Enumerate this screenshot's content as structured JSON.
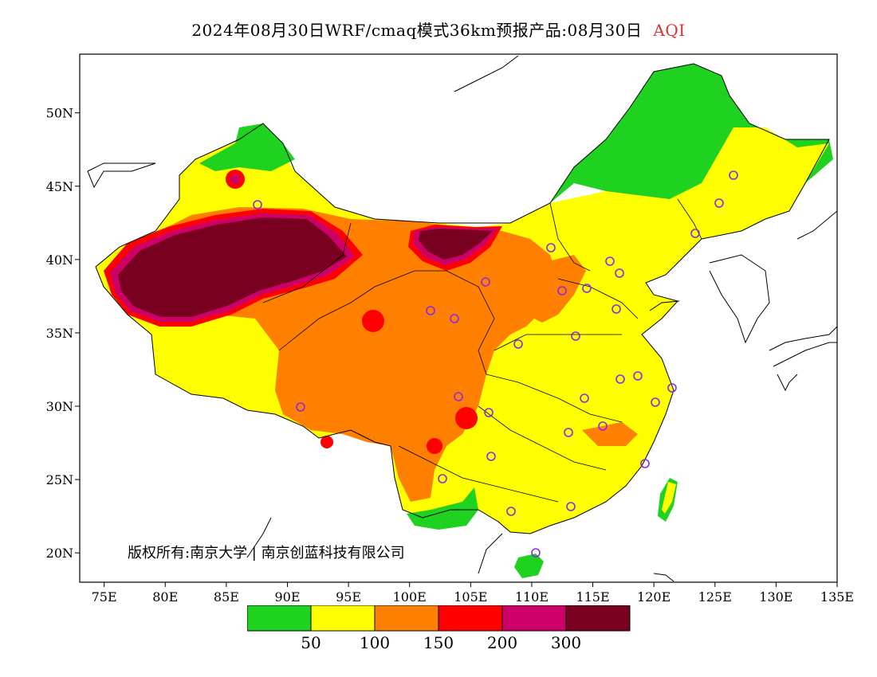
{
  "title": {
    "main": "2024年08月30日WRF/cmaq模式36km预报产品:08月30日",
    "variable": "AQI"
  },
  "copyright": "版权所有:南京大学 | 南京创蓝科技有限公司",
  "axes": {
    "lon_ticks": [
      "75E",
      "80E",
      "85E",
      "90E",
      "95E",
      "100E",
      "105E",
      "110E",
      "115E",
      "120E",
      "125E",
      "130E",
      "135E"
    ],
    "lat_ticks": [
      "50N",
      "45N",
      "40N",
      "35N",
      "30N",
      "25N",
      "20N"
    ],
    "lon_range": [
      73,
      135
    ],
    "lat_range": [
      18,
      54
    ]
  },
  "legend": {
    "colors": [
      "#1fd21f",
      "#ffff00",
      "#ff8000",
      "#ff0000",
      "#cc0066",
      "#7a0020"
    ],
    "labels": [
      "50",
      "100",
      "150",
      "200",
      "300"
    ],
    "categories": [
      "0-50",
      "50-100",
      "100-150",
      "150-200",
      "200-300",
      ">300"
    ]
  },
  "city_markers_count": 31
}
